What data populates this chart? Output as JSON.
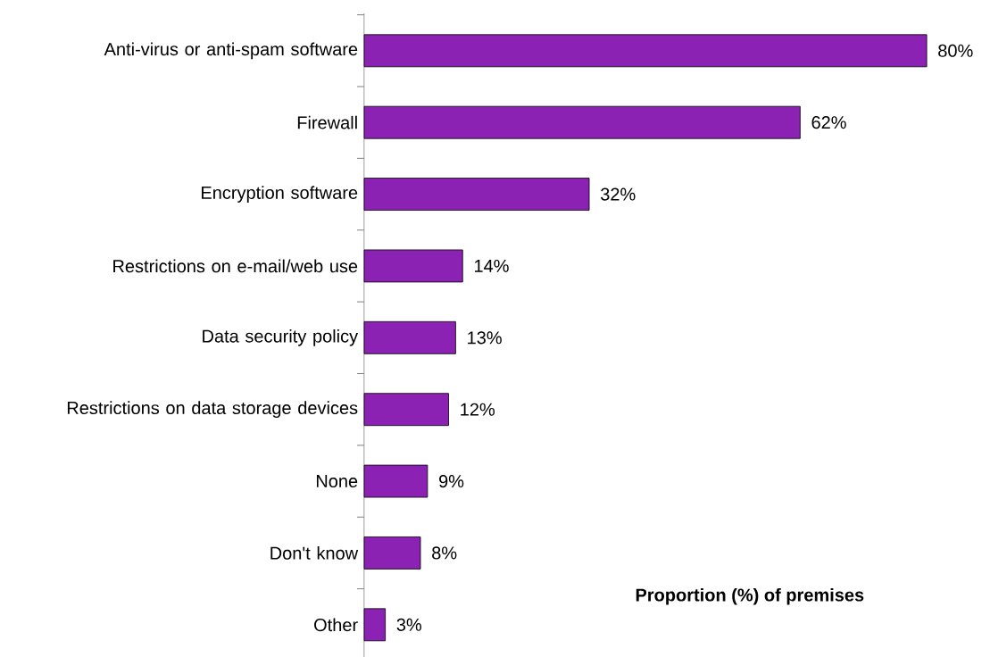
{
  "chart_data": {
    "type": "bar",
    "orientation": "horizontal",
    "xlabel": "Proportion (%) of premises",
    "categories": [
      "Anti-virus or anti-spam software",
      "Firewall",
      "Encryption software",
      "Restrictions on e-mail/web use",
      "Data security policy",
      "Restrictions on data storage devices",
      "None",
      "Don't know",
      "Other"
    ],
    "values": [
      80,
      62,
      32,
      14,
      13,
      12,
      9,
      8,
      3
    ],
    "value_labels": [
      "80%",
      "62%",
      "32%",
      "14%",
      "13%",
      "12%",
      "9%",
      "8%",
      "3%"
    ],
    "color": "#8b22b3"
  }
}
